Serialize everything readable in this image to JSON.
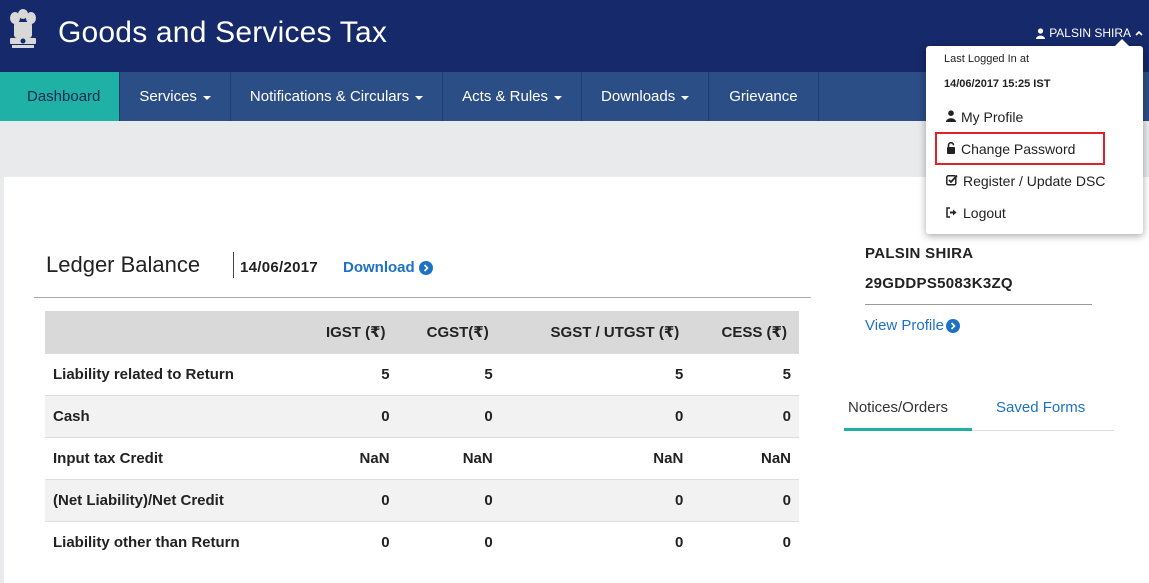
{
  "header": {
    "title": "Goods and Services Tax",
    "emblem_caption": "सत्यमेव जयते",
    "user_name": "PALSIN SHIRA"
  },
  "nav": {
    "items": [
      {
        "label": "Dashboard",
        "active": true,
        "dropdown": false
      },
      {
        "label": "Services",
        "active": false,
        "dropdown": true
      },
      {
        "label": "Notifications & Circulars",
        "active": false,
        "dropdown": true
      },
      {
        "label": "Acts & Rules",
        "active": false,
        "dropdown": true
      },
      {
        "label": "Downloads",
        "active": false,
        "dropdown": true
      },
      {
        "label": "Grievance",
        "active": false,
        "dropdown": false
      }
    ]
  },
  "ledger": {
    "title": "Ledger Balance",
    "date": "14/06/2017",
    "download_label": "Download",
    "columns": [
      "",
      "IGST (₹)",
      "CGST(₹)",
      "SGST / UTGST (₹)",
      "CESS (₹)"
    ],
    "rows": [
      {
        "label": "Liability related to Return",
        "values": [
          "5",
          "5",
          "5",
          "5"
        ]
      },
      {
        "label": "Cash",
        "values": [
          "0",
          "0",
          "0",
          "0"
        ]
      },
      {
        "label": "Input tax Credit",
        "values": [
          "NaN",
          "NaN",
          "NaN",
          "NaN"
        ]
      },
      {
        "label": "(Net Liability)/Net Credit",
        "values": [
          "0",
          "0",
          "0",
          "0"
        ]
      },
      {
        "label": "Liability other than Return",
        "values": [
          "0",
          "0",
          "0",
          "0"
        ]
      }
    ]
  },
  "profile": {
    "name": "PALSIN SHIRA",
    "gstin": "29GDDPS5083K3ZQ",
    "view_profile_label": "View Profile"
  },
  "tabs": [
    "Notices/Orders",
    "Saved Forms"
  ],
  "dropdown": {
    "last_logged_label": "Last Logged In at",
    "last_logged_value": "14/06/2017 15:25 IST",
    "items": [
      "My Profile",
      "Change Password",
      "Register / Update DSC",
      "Logout"
    ]
  },
  "colors": {
    "header_bg": "#16296a",
    "nav_bg": "#2c4e86",
    "active_tab": "#1fb1a5",
    "link": "#1d72c3",
    "highlight": "#e0202a"
  }
}
